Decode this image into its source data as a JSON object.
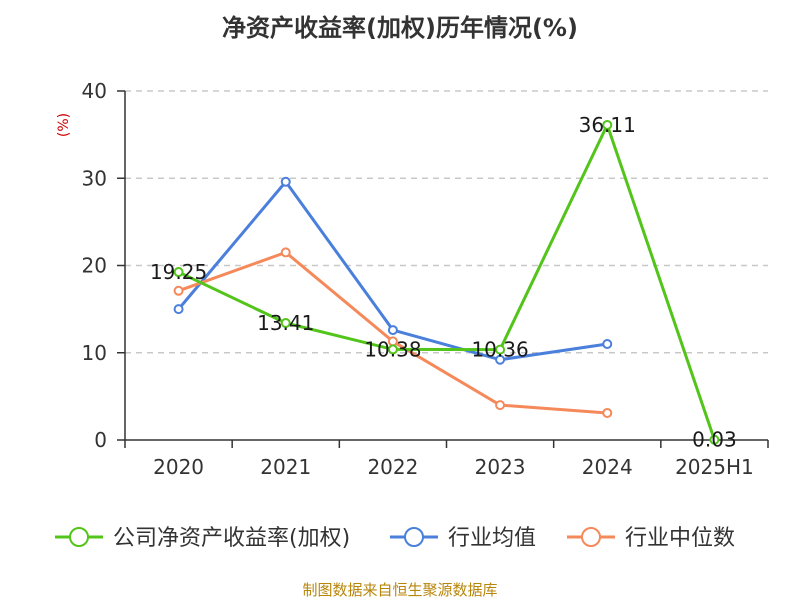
{
  "chart_data": {
    "type": "line",
    "title": "净资产收益率(加权)历年情况(%)",
    "ylabel": "(%)",
    "ylim": [
      0,
      40
    ],
    "yticks": [
      0,
      10,
      20,
      30,
      40
    ],
    "categories": [
      "2020",
      "2021",
      "2022",
      "2023",
      "2024",
      "2025H1"
    ],
    "grid": true,
    "legend_position": "bottom",
    "series": [
      {
        "name": "公司净资产收益率(加权)",
        "color": "#52c41a",
        "values": [
          19.25,
          13.41,
          10.38,
          10.36,
          36.11,
          0.03
        ],
        "labels": [
          "19.25",
          "13.41",
          "10.38",
          "10.36",
          "36.11",
          "0.03"
        ]
      },
      {
        "name": "行业均值",
        "color": "#4a7fdc",
        "values": [
          15.0,
          29.6,
          12.6,
          9.2,
          11.0,
          null
        ]
      },
      {
        "name": "行业中位数",
        "color": "#f5895a",
        "values": [
          17.1,
          21.5,
          11.3,
          4.0,
          3.1,
          null
        ]
      }
    ]
  },
  "source_text": "制图数据来自恒生聚源数据库"
}
